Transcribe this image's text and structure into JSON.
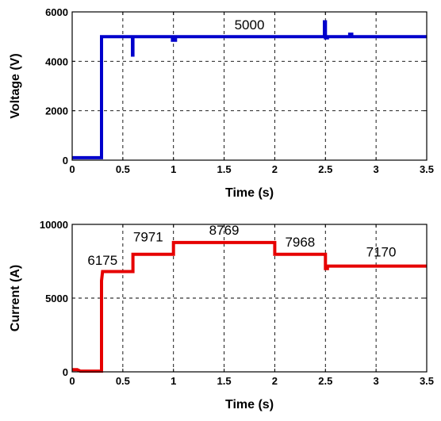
{
  "chart_data": [
    {
      "type": "line",
      "title": "",
      "xlabel": "Time (s)",
      "ylabel": "Voltage (V)",
      "xlim": [
        0,
        3.5
      ],
      "ylim": [
        0,
        6000
      ],
      "xticks": [
        0,
        0.5,
        1,
        1.5,
        2,
        2.5,
        3,
        3.5
      ],
      "xtick_labels": [
        "0",
        "0.5",
        "1",
        "1.5",
        "2",
        "2.5",
        "3",
        "3.5"
      ],
      "yticks": [
        0,
        2000,
        4000,
        6000
      ],
      "ytick_labels": [
        "0",
        "2000",
        "4000",
        "6000"
      ],
      "grid": true,
      "series": [
        {
          "color": "#0000cc",
          "x": [
            0,
            0.29,
            0.29,
            0.3,
            0.3,
            0.595,
            0.595,
            0.6,
            0.6,
            0.62,
            0.62,
            0.99,
            0.99,
            1.02,
            1.02,
            2.49,
            2.49,
            2.5,
            2.5,
            2.52,
            2.52,
            2.74,
            2.74,
            2.76,
            2.76,
            3.5
          ],
          "y": [
            100,
            100,
            5000,
            5000,
            5000,
            5000,
            4250,
            4250,
            5000,
            5000,
            5000,
            5000,
            4850,
            4850,
            5000,
            5000,
            5600,
            5600,
            4950,
            4950,
            5000,
            5000,
            5100,
            5100,
            5000,
            5000
          ]
        }
      ],
      "annotations": [
        {
          "text": "5000",
          "x": 1.75,
          "y": 5000
        }
      ]
    },
    {
      "type": "line",
      "title": "",
      "xlabel": "Time (s)",
      "ylabel": "Current (A)",
      "xlim": [
        0,
        3.5
      ],
      "ylim": [
        0,
        10000
      ],
      "xticks": [
        0,
        0.5,
        1,
        1.5,
        2,
        2.5,
        3,
        3.5
      ],
      "xtick_labels": [
        "0",
        "0.5",
        "1",
        "1.5",
        "2",
        "2.5",
        "3",
        "3.5"
      ],
      "yticks": [
        0,
        5000,
        10000
      ],
      "ytick_labels": [
        "0",
        "5000",
        "10000"
      ],
      "grid": true,
      "series": [
        {
          "color": "#e60000",
          "x": [
            0,
            0.05,
            0.08,
            0.29,
            0.29,
            0.3,
            0.3,
            0.6,
            0.6,
            1.0,
            1.0,
            2.0,
            2.0,
            2.5,
            2.5,
            2.52,
            2.52,
            3.5
          ],
          "y": [
            150,
            150,
            50,
            50,
            6175,
            6800,
            6800,
            6800,
            7971,
            7971,
            8769,
            8769,
            7968,
            7968,
            7000,
            7000,
            7170,
            7170
          ]
        }
      ],
      "annotations": [
        {
          "text": "6175",
          "x": 0.3,
          "y": 6175
        },
        {
          "text": "7971",
          "x": 0.75,
          "y": 7971
        },
        {
          "text": "8769",
          "x": 1.5,
          "y": 8769
        },
        {
          "text": "7968",
          "x": 2.25,
          "y": 7968
        },
        {
          "text": "7170",
          "x": 3.05,
          "y": 7170
        }
      ]
    }
  ]
}
